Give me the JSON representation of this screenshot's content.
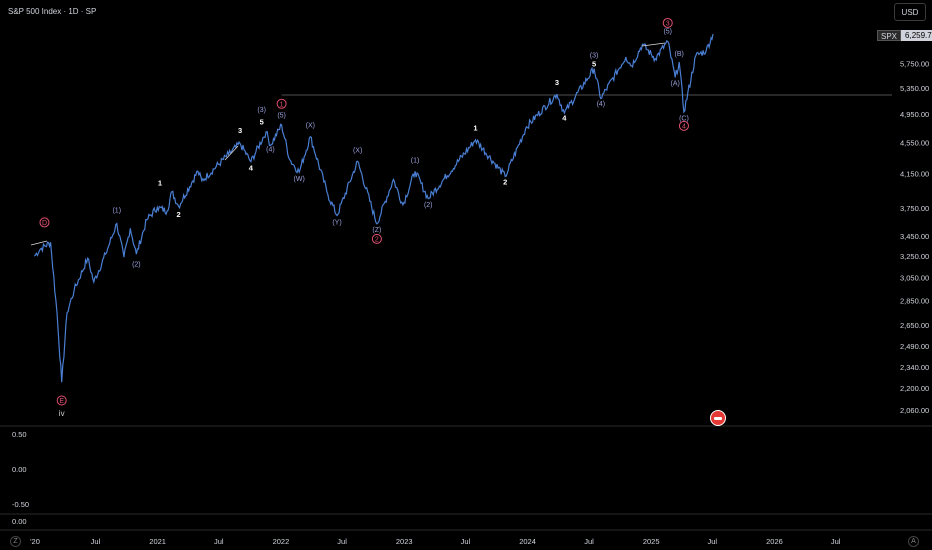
{
  "header": {
    "title": "S&P 500 Index · 1D · SP"
  },
  "currency": "USD",
  "price_tag": {
    "symbol": "SPX",
    "value": "6,259.74"
  },
  "corner_buttons": {
    "left": "Z",
    "right": "A"
  },
  "colors": {
    "price_line": "#4a7fd4",
    "annotation_white": "#ffffff",
    "annotation_purple": "#9aa0dc",
    "circle_red": "#e05070",
    "background": "#000000",
    "axis_text": "#d1d4dc"
  },
  "chart_data": {
    "type": "line",
    "title": "S&P 500 Index · 1D · SP",
    "price_axis": {
      "scale": "log",
      "range": [
        1950,
        6600
      ],
      "ticks": [
        "6,259.74",
        "5,750.00",
        "5,350.00",
        "4,950.00",
        "4,550.00",
        "4,150.00",
        "3,750.00",
        "3,450.00",
        "3,250.00",
        "3,050.00",
        "2,850.00",
        "2,650.00",
        "2,490.00",
        "2,340.00",
        "2,200.00",
        "2,060.00"
      ]
    },
    "time_axis": {
      "range": [
        "2020-01-01",
        "2026-09-01"
      ],
      "ticks": [
        {
          "label": "'20",
          "date": "2020-01-01"
        },
        {
          "label": "Jul",
          "date": "2020-07-01"
        },
        {
          "label": "2021",
          "date": "2021-01-01"
        },
        {
          "label": "Jul",
          "date": "2021-07-01"
        },
        {
          "label": "2022",
          "date": "2022-01-01"
        },
        {
          "label": "Jul",
          "date": "2022-07-01"
        },
        {
          "label": "2023",
          "date": "2023-01-01"
        },
        {
          "label": "Jul",
          "date": "2023-07-01"
        },
        {
          "label": "2024",
          "date": "2024-01-01"
        },
        {
          "label": "Jul",
          "date": "2024-07-01"
        },
        {
          "label": "2025",
          "date": "2025-01-01"
        },
        {
          "label": "Jul",
          "date": "2025-07-01"
        },
        {
          "label": "2026",
          "date": "2026-01-01"
        },
        {
          "label": "Jul",
          "date": "2026-07-01"
        }
      ]
    },
    "series": [
      {
        "values": [
          [
            "2020-01-02",
            3250
          ],
          [
            "2020-01-20",
            3320
          ],
          [
            "2020-02-19",
            3386
          ],
          [
            "2020-03-09",
            2750
          ],
          [
            "2020-03-23",
            2237
          ],
          [
            "2020-04-08",
            2750
          ],
          [
            "2020-04-29",
            2940
          ],
          [
            "2020-06-08",
            3230
          ],
          [
            "2020-06-26",
            3010
          ],
          [
            "2020-07-31",
            3270
          ],
          [
            "2020-09-02",
            3580
          ],
          [
            "2020-09-23",
            3240
          ],
          [
            "2020-10-12",
            3530
          ],
          [
            "2020-10-30",
            3270
          ],
          [
            "2020-11-30",
            3620
          ],
          [
            "2020-12-31",
            3756
          ],
          [
            "2021-01-29",
            3714
          ],
          [
            "2021-02-12",
            3934
          ],
          [
            "2021-03-04",
            3768
          ],
          [
            "2021-04-30",
            4181
          ],
          [
            "2021-05-12",
            4063
          ],
          [
            "2021-07-30",
            4395
          ],
          [
            "2021-09-02",
            4537
          ],
          [
            "2021-10-04",
            4300
          ],
          [
            "2021-11-18",
            4700
          ],
          [
            "2021-12-01",
            4513
          ],
          [
            "2022-01-03",
            4796
          ],
          [
            "2022-01-27",
            4326
          ],
          [
            "2022-02-24",
            4170
          ],
          [
            "2022-03-29",
            4631
          ],
          [
            "2022-05-20",
            3900
          ],
          [
            "2022-06-16",
            3666
          ],
          [
            "2022-08-16",
            4305
          ],
          [
            "2022-10-12",
            3577
          ],
          [
            "2022-11-30",
            4080
          ],
          [
            "2022-12-28",
            3783
          ],
          [
            "2023-02-02",
            4179
          ],
          [
            "2023-03-13",
            3855
          ],
          [
            "2023-07-31",
            4589
          ],
          [
            "2023-10-27",
            4117
          ],
          [
            "2023-12-29",
            4770
          ],
          [
            "2024-03-28",
            5254
          ],
          [
            "2024-04-19",
            4967
          ],
          [
            "2024-07-16",
            5667
          ],
          [
            "2024-08-05",
            5186
          ],
          [
            "2024-10-18",
            5864
          ],
          [
            "2024-11-04",
            5712
          ],
          [
            "2024-12-06",
            6090
          ],
          [
            "2025-01-13",
            5836
          ],
          [
            "2025-02-19",
            6144
          ],
          [
            "2025-03-13",
            5521
          ],
          [
            "2025-03-25",
            5776
          ],
          [
            "2025-04-08",
            4982
          ],
          [
            "2025-05-13",
            5886
          ],
          [
            "2025-06-13",
            5977
          ],
          [
            "2025-07-03",
            6279
          ]
        ]
      }
    ],
    "annotations": [
      {
        "text": "D",
        "date": "2020-02-01",
        "price": 3560,
        "style": "circle"
      },
      {
        "text": "E",
        "date": "2020-03-23",
        "price": 2100,
        "style": "circle"
      },
      {
        "text": "iv",
        "date": "2020-03-23",
        "price": 2060,
        "style": "plain"
      },
      {
        "text": "(1)",
        "date": "2020-09-02",
        "price": 3700,
        "style": "purple"
      },
      {
        "text": "(2)",
        "date": "2020-10-30",
        "price": 3150,
        "style": "purple"
      },
      {
        "text": "1",
        "date": "2021-01-08",
        "price": 4010,
        "style": "white"
      },
      {
        "text": "2",
        "date": "2021-03-04",
        "price": 3650,
        "style": "white"
      },
      {
        "text": "3",
        "date": "2021-09-02",
        "price": 4680,
        "style": "white"
      },
      {
        "text": "4",
        "date": "2021-10-04",
        "price": 4190,
        "style": "white"
      },
      {
        "text": "(3)",
        "date": "2021-11-05",
        "price": 4980,
        "style": "purple"
      },
      {
        "text": "5",
        "date": "2021-11-05",
        "price": 4800,
        "style": "white"
      },
      {
        "text": "(4)",
        "date": "2021-12-01",
        "price": 4430,
        "style": "purple"
      },
      {
        "text": "1",
        "date": "2022-01-03",
        "price": 5060,
        "style": "circle"
      },
      {
        "text": "(5)",
        "date": "2022-01-03",
        "price": 4900,
        "style": "purple"
      },
      {
        "text": "(W)",
        "date": "2022-02-24",
        "price": 4060,
        "style": "purple"
      },
      {
        "text": "(X)",
        "date": "2022-03-29",
        "price": 4760,
        "style": "purple"
      },
      {
        "text": "(Y)",
        "date": "2022-06-16",
        "price": 3570,
        "style": "purple"
      },
      {
        "text": "(X)",
        "date": "2022-08-16",
        "price": 4420,
        "style": "purple"
      },
      {
        "text": "(Z)",
        "date": "2022-10-12",
        "price": 3490,
        "style": "purple"
      },
      {
        "text": "2",
        "date": "2022-10-12",
        "price": 3390,
        "style": "circle"
      },
      {
        "text": "(1)",
        "date": "2023-02-02",
        "price": 4290,
        "style": "purple"
      },
      {
        "text": "(2)",
        "date": "2023-03-13",
        "price": 3760,
        "style": "purple"
      },
      {
        "text": "1",
        "date": "2023-07-31",
        "price": 4720,
        "style": "white"
      },
      {
        "text": "2",
        "date": "2023-10-27",
        "price": 4020,
        "style": "white"
      },
      {
        "text": "3",
        "date": "2024-03-28",
        "price": 5400,
        "style": "white"
      },
      {
        "text": "4",
        "date": "2024-04-19",
        "price": 4860,
        "style": "white"
      },
      {
        "text": "(3)",
        "date": "2024-07-16",
        "price": 5860,
        "style": "purple"
      },
      {
        "text": "5",
        "date": "2024-07-16",
        "price": 5700,
        "style": "white"
      },
      {
        "text": "(4)",
        "date": "2024-08-05",
        "price": 5070,
        "style": "purple"
      },
      {
        "text": "3",
        "date": "2025-02-19",
        "price": 6430,
        "style": "circle"
      },
      {
        "text": "(5)",
        "date": "2025-02-19",
        "price": 6290,
        "style": "purple"
      },
      {
        "text": "(B)",
        "date": "2025-03-25",
        "price": 5880,
        "style": "purple"
      },
      {
        "text": "(A)",
        "date": "2025-03-13",
        "price": 5390,
        "style": "purple"
      },
      {
        "text": "(C)",
        "date": "2025-04-08",
        "price": 4860,
        "style": "purple"
      },
      {
        "text": "4",
        "date": "2025-04-08",
        "price": 4740,
        "style": "circle"
      }
    ],
    "horizontal_line": {
      "price": 5240,
      "from": "2022-01-03"
    },
    "indicator_ticks": [
      "0.50",
      "0.00",
      "-0.50",
      "0.00"
    ]
  }
}
